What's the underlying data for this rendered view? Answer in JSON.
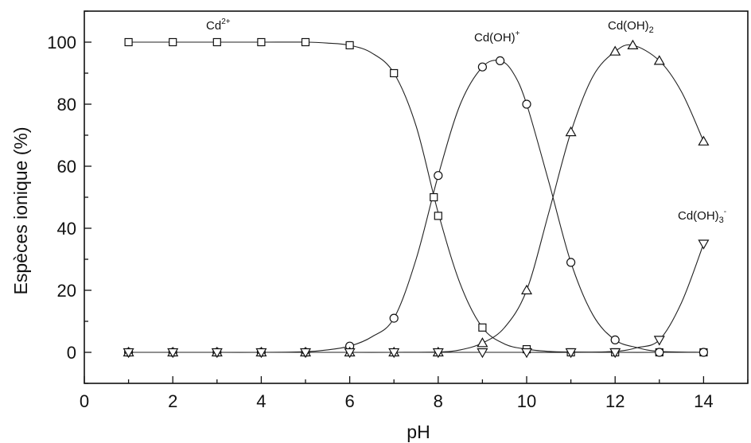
{
  "chart_data": {
    "type": "line",
    "title": "",
    "xlabel": "pH",
    "ylabel": "Espèces ionique (%)",
    "xlim": [
      0,
      15
    ],
    "ylim": [
      -10,
      110
    ],
    "xticks": [
      0,
      2,
      4,
      6,
      8,
      10,
      12,
      14
    ],
    "yticks": [
      0,
      20,
      40,
      60,
      80,
      100
    ],
    "grid": false,
    "legend": "none",
    "series": [
      {
        "name": "Cd2+",
        "label_base": "Cd",
        "label_mark": "2+",
        "label_mark_type": "sup",
        "marker": "square",
        "x": [
          1,
          2,
          3,
          4,
          5,
          6,
          7,
          7.9,
          8,
          9,
          10,
          11,
          12,
          13,
          14
        ],
        "y": [
          100,
          100,
          100,
          100,
          100,
          99,
          90,
          50,
          44,
          8,
          1,
          0,
          0,
          0,
          0
        ],
        "curve_x": [
          1,
          2,
          3,
          4,
          5,
          5.5,
          6,
          6.5,
          7,
          7.5,
          8,
          8.5,
          9,
          9.5,
          10,
          10.5,
          11,
          12,
          13,
          14
        ],
        "curve_y": [
          100,
          100,
          100,
          100,
          100,
          99.7,
          99,
          96.5,
          90,
          73,
          45,
          22,
          8,
          2.7,
          1,
          0.3,
          0.1,
          0,
          0,
          0
        ]
      },
      {
        "name": "Cd(OH)+",
        "label_base": "Cd(OH)",
        "label_mark": "+",
        "label_mark_type": "sup",
        "marker": "circle",
        "x": [
          1,
          2,
          3,
          4,
          5,
          6,
          7,
          8,
          9,
          9.4,
          10,
          11,
          12,
          13,
          14
        ],
        "y": [
          0,
          0,
          0,
          0,
          0,
          2,
          11,
          57,
          92,
          94,
          80,
          29,
          4,
          0,
          0
        ],
        "curve_x": [
          1,
          2,
          3,
          4,
          5,
          5.5,
          6,
          6.5,
          7,
          7.5,
          8,
          8.5,
          9,
          9.4,
          9.7,
          10,
          10.5,
          11,
          11.5,
          12,
          12.5,
          13,
          14
        ],
        "curve_y": [
          0,
          0,
          0,
          0,
          0.2,
          0.8,
          2,
          5,
          11,
          30,
          57,
          80,
          92,
          94,
          90,
          80,
          55,
          29,
          12,
          4,
          1.5,
          0.3,
          0
        ]
      },
      {
        "name": "Cd(OH)2",
        "label_base": "Cd(OH)",
        "label_mark": "2",
        "label_mark_type": "sub",
        "marker": "triangle-up",
        "x": [
          1,
          2,
          3,
          4,
          5,
          6,
          7,
          8,
          9,
          10,
          11,
          12,
          12.4,
          13,
          14
        ],
        "y": [
          0,
          0,
          0,
          0,
          0,
          0,
          0,
          0,
          3,
          20,
          71,
          97,
          99,
          94,
          68
        ],
        "curve_x": [
          1,
          2,
          3,
          4,
          5,
          6,
          7,
          8,
          8.5,
          9,
          9.5,
          10,
          10.5,
          11,
          11.5,
          12,
          12.4,
          13,
          13.5,
          14
        ],
        "curve_y": [
          0,
          0,
          0,
          0,
          0,
          0,
          0,
          0.1,
          0.8,
          3,
          8,
          20,
          45,
          71,
          89,
          97,
          99,
          94,
          84,
          68
        ]
      },
      {
        "name": "Cd(OH)3-",
        "label_base": "Cd(OH)",
        "label_mark": "3",
        "label_mark_type": "sub",
        "label_mark2": "-",
        "marker": "triangle-down",
        "x": [
          1,
          2,
          3,
          4,
          5,
          6,
          7,
          8,
          9,
          10,
          11,
          12,
          13,
          14
        ],
        "y": [
          0,
          0,
          0,
          0,
          0,
          0,
          0,
          0,
          0,
          0,
          0,
          0,
          4,
          35
        ],
        "curve_x": [
          1,
          2,
          3,
          4,
          5,
          6,
          7,
          8,
          9,
          10,
          11,
          12,
          12.5,
          13,
          13.5,
          14
        ],
        "curve_y": [
          0,
          0,
          0,
          0,
          0,
          0,
          0,
          0,
          0,
          0,
          0,
          0.3,
          1.5,
          4,
          16,
          35
        ]
      }
    ]
  }
}
